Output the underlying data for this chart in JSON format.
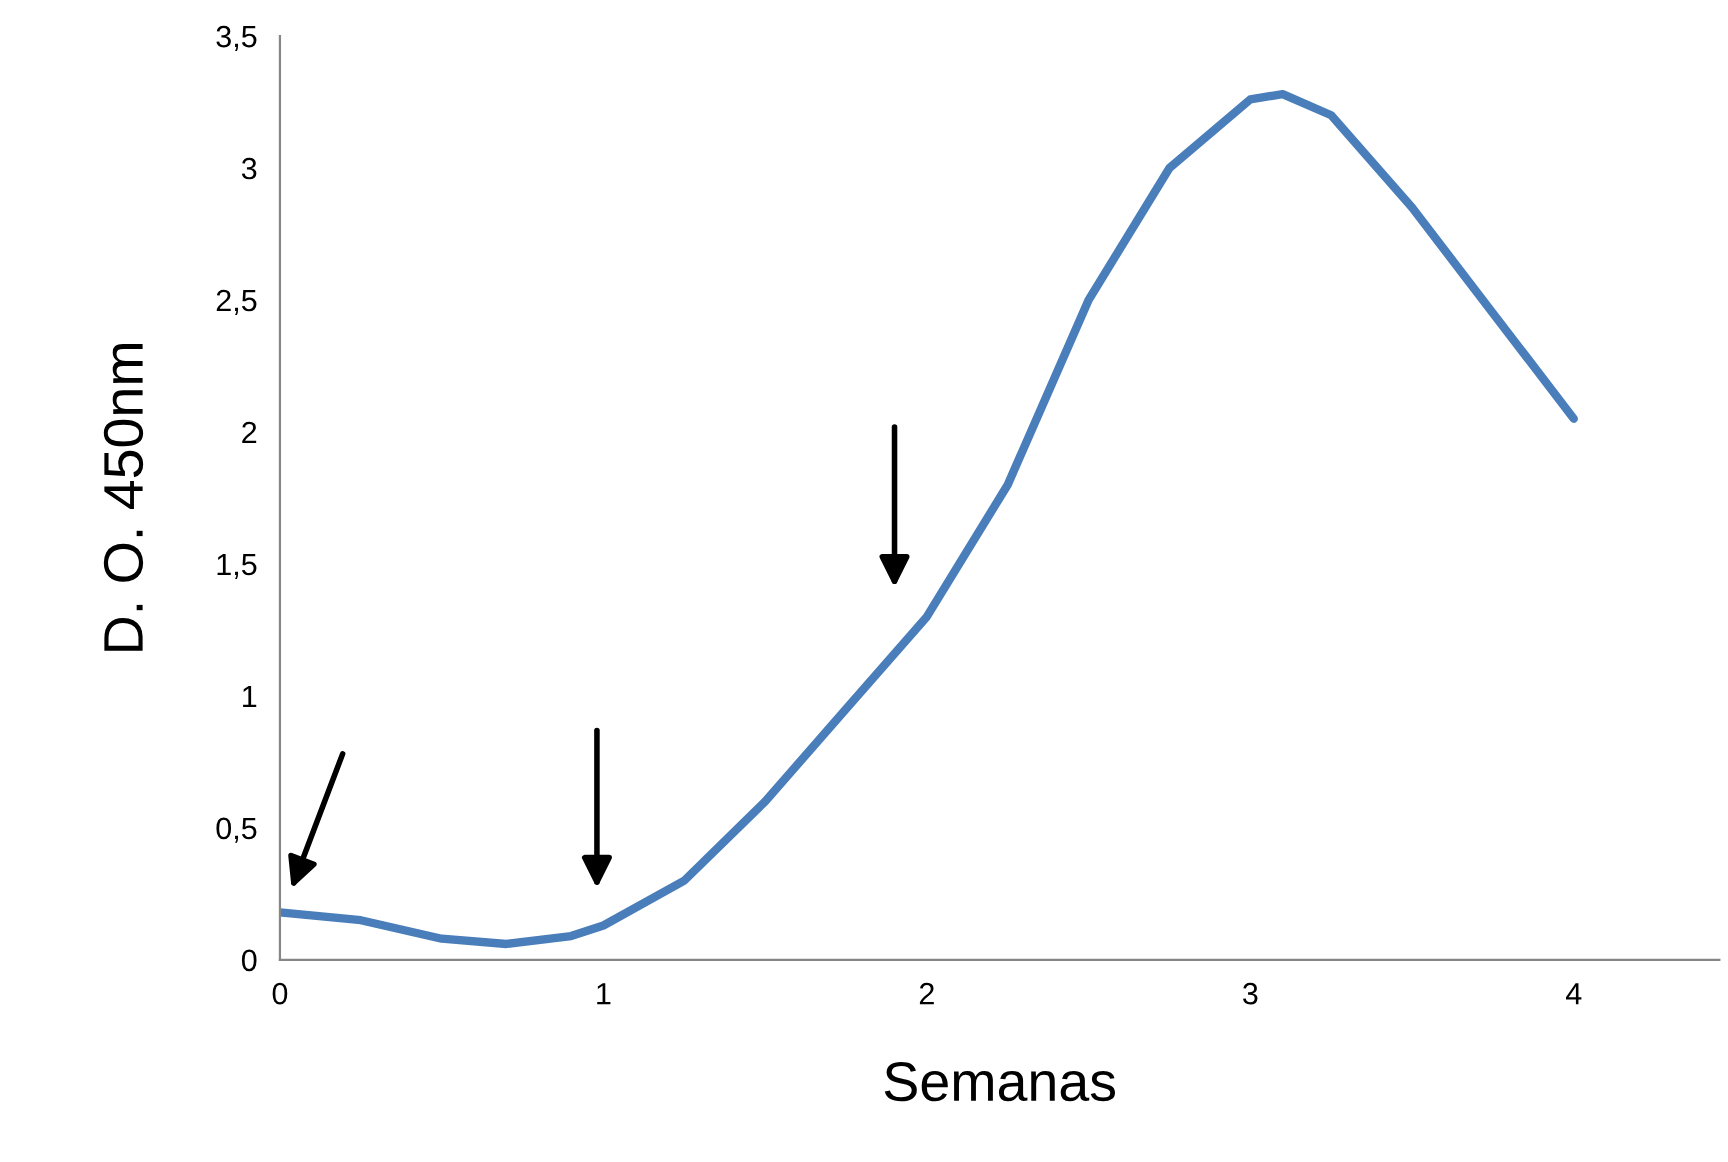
{
  "chart_data": {
    "type": "line",
    "xlabel": "Semanas",
    "ylabel": "D. O. 450nm",
    "series": [
      {
        "color": "#4a7ebb",
        "x": [
          0,
          0.25,
          0.5,
          0.7,
          0.9,
          1.0,
          1.25,
          1.5,
          1.75,
          2.0,
          2.25,
          2.5,
          2.75,
          3.0,
          3.1,
          3.25,
          3.5,
          3.75,
          4.0
        ],
        "values": [
          0.18,
          0.15,
          0.08,
          0.06,
          0.09,
          0.13,
          0.3,
          0.6,
          0.95,
          1.3,
          1.8,
          2.5,
          3.0,
          3.26,
          3.28,
          3.2,
          2.85,
          2.45,
          2.05
        ]
      }
    ],
    "xlim": [
      0,
      4.45
    ],
    "xticks": [
      0,
      1,
      2,
      3,
      4
    ],
    "ylim": [
      0,
      3.5
    ],
    "yticks": [
      0,
      {
        "value": 0.5,
        "label": "0,5"
      },
      1,
      {
        "value": 1.5,
        "label": "1,5"
      },
      2,
      {
        "value": 2.5,
        "label": "2,5"
      },
      3,
      {
        "value": 3.5,
        "label": "3,5"
      }
    ],
    "grid": false,
    "legend": false,
    "marker": "none",
    "line_style": "solid"
  }
}
